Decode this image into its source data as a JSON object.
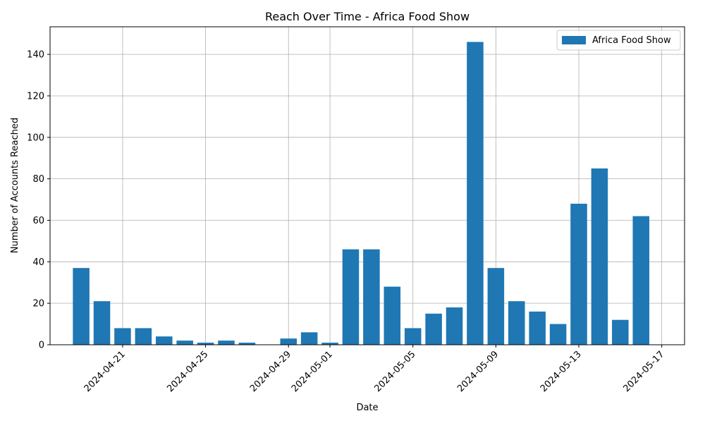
{
  "chart_data": {
    "type": "bar",
    "title": "Reach Over Time - Africa Food Show",
    "xlabel": "Date",
    "ylabel": "Number of Accounts Reached",
    "color": "#1f77b4",
    "grid": true,
    "legend_position": "top-right",
    "series": [
      {
        "name": "Africa Food Show",
        "points": [
          {
            "date": "2024-04-19",
            "value": 37
          },
          {
            "date": "2024-04-20",
            "value": 21
          },
          {
            "date": "2024-04-21",
            "value": 8
          },
          {
            "date": "2024-04-22",
            "value": 8
          },
          {
            "date": "2024-04-23",
            "value": 4
          },
          {
            "date": "2024-04-24",
            "value": 2
          },
          {
            "date": "2024-04-25",
            "value": 1
          },
          {
            "date": "2024-04-26",
            "value": 2
          },
          {
            "date": "2024-04-27",
            "value": 1
          },
          {
            "date": "2024-04-29",
            "value": 3
          },
          {
            "date": "2024-04-30",
            "value": 6
          },
          {
            "date": "2024-05-01",
            "value": 1
          },
          {
            "date": "2024-05-02",
            "value": 46
          },
          {
            "date": "2024-05-03",
            "value": 46
          },
          {
            "date": "2024-05-04",
            "value": 28
          },
          {
            "date": "2024-05-05",
            "value": 8
          },
          {
            "date": "2024-05-06",
            "value": 15
          },
          {
            "date": "2024-05-07",
            "value": 18
          },
          {
            "date": "2024-05-08",
            "value": 146
          },
          {
            "date": "2024-05-09",
            "value": 37
          },
          {
            "date": "2024-05-10",
            "value": 21
          },
          {
            "date": "2024-05-11",
            "value": 16
          },
          {
            "date": "2024-05-12",
            "value": 10
          },
          {
            "date": "2024-05-13",
            "value": 68
          },
          {
            "date": "2024-05-14",
            "value": 85
          },
          {
            "date": "2024-05-15",
            "value": 12
          },
          {
            "date": "2024-05-16",
            "value": 62
          }
        ]
      }
    ],
    "x_ticks": [
      "2024-04-21",
      "2024-04-25",
      "2024-04-29",
      "2024-05-01",
      "2024-05-05",
      "2024-05-09",
      "2024-05-13",
      "2024-05-17"
    ],
    "y_ticks": [
      0,
      20,
      40,
      60,
      80,
      100,
      120,
      140
    ],
    "xlim": [
      "2024-04-17",
      "2024-05-18"
    ],
    "ylim": [
      0,
      153.3
    ]
  }
}
